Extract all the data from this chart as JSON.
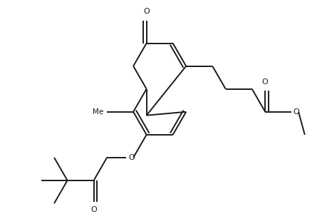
{
  "bg_color": "#ffffff",
  "line_color": "#1a1a1a",
  "line_width": 1.4,
  "fig_width": 4.6,
  "fig_height": 3.0,
  "dpi": 100,
  "xlim": [
    0,
    4.6
  ],
  "ylim": [
    0,
    3.0
  ]
}
